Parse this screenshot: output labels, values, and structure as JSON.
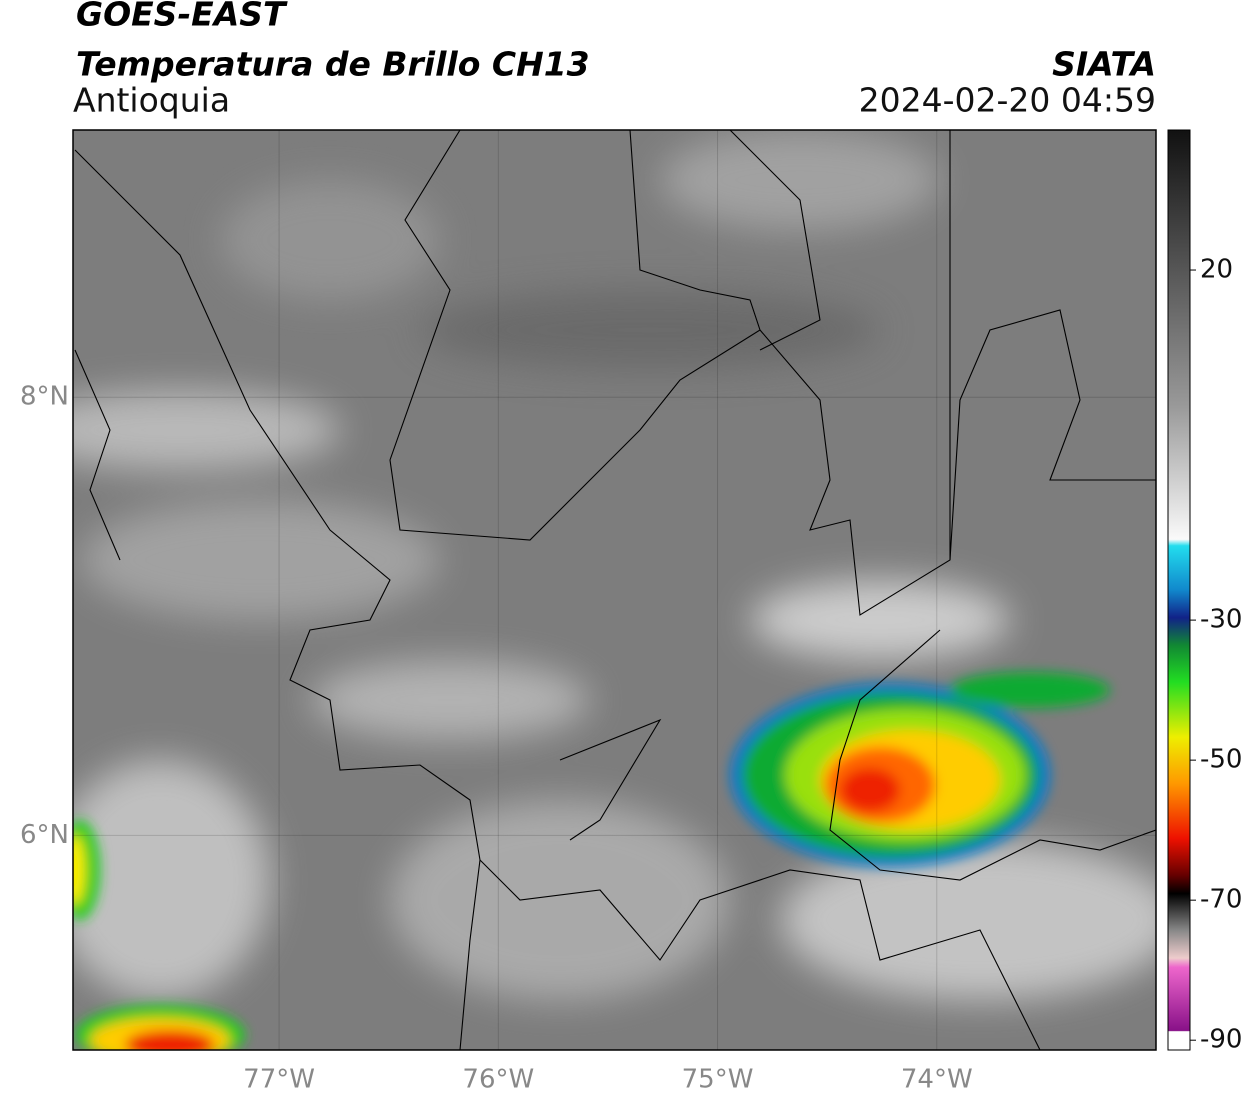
{
  "header": {
    "title": "GOES-EAST",
    "subtitle": "Temperatura de Brillo CH13",
    "region": "Antioquia",
    "source": "SIATA",
    "datetime": "2024-02-20 04:59"
  },
  "map": {
    "xlim": [
      -77.94,
      -73.0
    ],
    "ylim": [
      5.02,
      9.22
    ],
    "xticks": [
      {
        "value": -77,
        "label": "77°W"
      },
      {
        "value": -76,
        "label": "76°W"
      },
      {
        "value": -75,
        "label": "75°W"
      },
      {
        "value": -74,
        "label": "74°W"
      }
    ],
    "yticks": [
      {
        "value": 8,
        "label": "8°N"
      },
      {
        "value": 6,
        "label": "6°N"
      }
    ]
  },
  "colorbar": {
    "lim": [
      40,
      -91.4
    ],
    "ticks": [
      20,
      -30,
      -50,
      -70,
      -90
    ]
  }
}
